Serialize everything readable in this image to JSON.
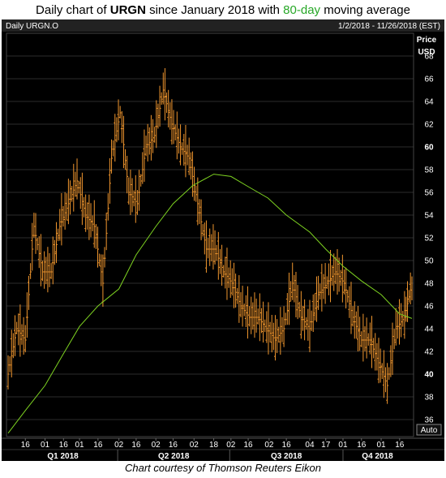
{
  "title": {
    "prefix": "Daily chart of ",
    "symbol": "URGN",
    "middle": " since January 2018 with ",
    "ma_label": "80-day",
    "suffix": " moving average"
  },
  "header": {
    "instrument": "Daily URGN.O",
    "date_range": "1/2/2018 - 11/26/2018 (EST)"
  },
  "axis": {
    "price_label": "Price",
    "currency_label": "USD",
    "auto_label": "Auto"
  },
  "caption": "Chart courtesy of Thomson Reuters Eikon",
  "colors": {
    "background": "#000000",
    "price_bars": "#f0962e",
    "moving_average": "#7ed321",
    "grid": "#2b2b2b",
    "axis_text": "#ffffff",
    "title_accent": "#27a827"
  },
  "chart_data": {
    "type": "line",
    "title": "Daily chart of URGN since January 2018 with 80-day moving average",
    "xlabel": "",
    "ylabel": "Price USD",
    "ylim": [
      34.5,
      70
    ],
    "yticks": [
      36,
      38,
      40,
      42,
      44,
      46,
      48,
      50,
      52,
      54,
      56,
      58,
      60,
      62,
      64,
      66,
      68
    ],
    "x_tick_labels": [
      "16",
      "01",
      "16",
      "01",
      "16",
      "02",
      "16",
      "02",
      "16",
      "02",
      "18",
      "02",
      "16",
      "02",
      "16",
      "04",
      "17",
      "01",
      "16",
      "01",
      "16"
    ],
    "quarter_labels": [
      "Q1 2018",
      "Q2 2018",
      "Q3 2018",
      "Q4 2018"
    ],
    "grid": true,
    "series": [
      {
        "name": "URGN.O",
        "style": "daily high-low bars",
        "x": [
          "2018-01-02",
          "2018-01-09",
          "2018-01-16",
          "2018-01-23",
          "2018-01-30",
          "2018-02-06",
          "2018-02-13",
          "2018-02-20",
          "2018-02-27",
          "2018-03-06",
          "2018-03-13",
          "2018-03-20",
          "2018-03-27",
          "2018-04-03",
          "2018-04-10",
          "2018-04-17",
          "2018-04-24",
          "2018-05-01",
          "2018-05-08",
          "2018-05-15",
          "2018-05-22",
          "2018-05-29",
          "2018-06-05",
          "2018-06-12",
          "2018-06-19",
          "2018-06-26",
          "2018-07-03",
          "2018-07-10",
          "2018-07-17",
          "2018-07-24",
          "2018-07-31",
          "2018-08-07",
          "2018-08-14",
          "2018-08-21",
          "2018-08-28",
          "2018-09-04",
          "2018-09-11",
          "2018-09-18",
          "2018-09-25",
          "2018-10-02",
          "2018-10-09",
          "2018-10-16",
          "2018-10-23",
          "2018-10-30",
          "2018-11-06",
          "2018-11-13",
          "2018-11-20",
          "2018-11-26"
        ],
        "values": [
          40,
          44,
          43,
          53,
          49,
          49,
          53,
          55,
          57,
          54,
          53,
          48,
          59,
          63,
          56,
          55,
          60,
          61,
          65,
          62,
          60,
          59,
          55,
          51,
          51,
          49,
          48,
          46,
          45,
          45,
          44,
          43,
          44,
          48,
          45,
          44,
          47,
          48,
          49,
          48,
          45,
          43,
          43,
          41,
          39,
          44,
          45,
          48
        ]
      },
      {
        "name": "80-day moving average",
        "x": [
          "2018-01-02",
          "2018-01-16",
          "2018-02-01",
          "2018-02-16",
          "2018-03-01",
          "2018-03-16",
          "2018-04-02",
          "2018-04-16",
          "2018-05-02",
          "2018-05-16",
          "2018-06-01",
          "2018-06-18",
          "2018-07-02",
          "2018-07-16",
          "2018-08-01",
          "2018-08-16",
          "2018-09-04",
          "2018-09-17",
          "2018-10-01",
          "2018-10-16",
          "2018-11-01",
          "2018-11-16",
          "2018-11-26"
        ],
        "values": [
          34.8,
          36.8,
          39.0,
          41.8,
          44.2,
          46.0,
          47.5,
          50.5,
          53.0,
          55.0,
          56.6,
          57.6,
          57.4,
          56.5,
          55.5,
          54.0,
          52.5,
          51.0,
          49.5,
          48.2,
          47.0,
          45.3,
          44.9
        ]
      }
    ]
  }
}
